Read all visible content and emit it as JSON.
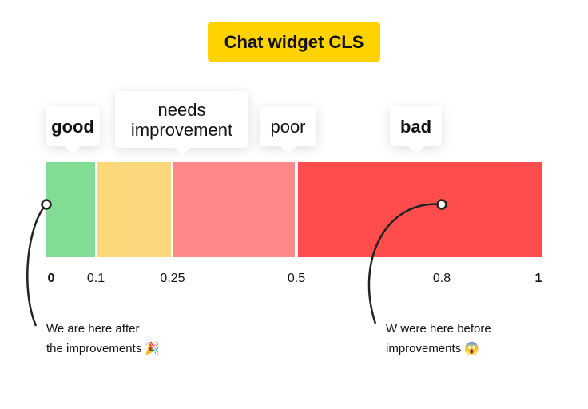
{
  "title": "Chat widget CLS",
  "zones": [
    {
      "label": "good",
      "from": 0,
      "to": 0.1,
      "color": "#80dd93"
    },
    {
      "label": "needs improvement",
      "from": 0.1,
      "to": 0.25,
      "color": "#fbd87c"
    },
    {
      "label": "poor",
      "from": 0.25,
      "to": 0.5,
      "color": "#ff8888"
    },
    {
      "label": "bad",
      "from": 0.5,
      "to": 1,
      "color": "#ff4c4c"
    }
  ],
  "ticks": [
    "0",
    "0.1",
    "0.25",
    "0.5",
    "0.8",
    "1"
  ],
  "markers": [
    {
      "value": 0,
      "note_line1": "We are here after",
      "note_line2": "the improvements 🎉"
    },
    {
      "value": 0.8,
      "note_line1": "W were here before",
      "note_line2": "improvements 😱"
    }
  ]
}
